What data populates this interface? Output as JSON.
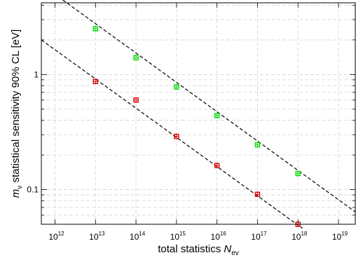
{
  "chart_data": {
    "type": "scatter",
    "title": "",
    "xlabel": {
      "main": "total statistics ",
      "symbol": "N",
      "subscript": "ev"
    },
    "ylabel": {
      "symbol": "m",
      "subscript": "ν",
      "rest": " statistical sensitivity 90% CL [eV]"
    },
    "x_scale": "log",
    "y_scale": "log",
    "xlim": [
      460000000000.0,
      2.6e+19
    ],
    "ylim": [
      0.05,
      4.2
    ],
    "x_ticks": [
      {
        "base": "10",
        "exp": "12",
        "value": 1000000000000.0
      },
      {
        "base": "10",
        "exp": "13",
        "value": 10000000000000.0
      },
      {
        "base": "10",
        "exp": "14",
        "value": 100000000000000.0
      },
      {
        "base": "10",
        "exp": "15",
        "value": 1000000000000000.0
      },
      {
        "base": "10",
        "exp": "16",
        "value": 1e+16
      },
      {
        "base": "10",
        "exp": "17",
        "value": 1e+17
      },
      {
        "base": "10",
        "exp": "18",
        "value": 1e+18
      },
      {
        "base": "10",
        "exp": "19",
        "value": 1e+19
      }
    ],
    "y_ticks": [
      {
        "label": "0.1",
        "value": 0.1
      },
      {
        "label": "1",
        "value": 1
      }
    ],
    "grid": true,
    "series": [
      {
        "color": "#00dd00",
        "x": [
          10000000000000.0,
          100000000000000.0,
          1000000000000000.0,
          1e+16,
          1e+17,
          1e+18
        ],
        "y": [
          2.5,
          1.4,
          0.78,
          0.44,
          0.245,
          0.138
        ],
        "fit": {
          "x": [
            1200000000000.0,
            2.6e+19
          ],
          "y": [
            4.75,
            0.064
          ]
        }
      },
      {
        "color": "#dd0000",
        "x": [
          10000000000000.0,
          100000000000000.0,
          1000000000000000.0,
          1e+16,
          1e+17,
          1e+18
        ],
        "y": [
          0.87,
          0.6,
          0.29,
          0.162,
          0.091,
          0.05
        ],
        "fit": {
          "x": [
            460000000000.0,
            1.3e+18
          ],
          "y": [
            2.0,
            0.046
          ]
        }
      }
    ]
  }
}
